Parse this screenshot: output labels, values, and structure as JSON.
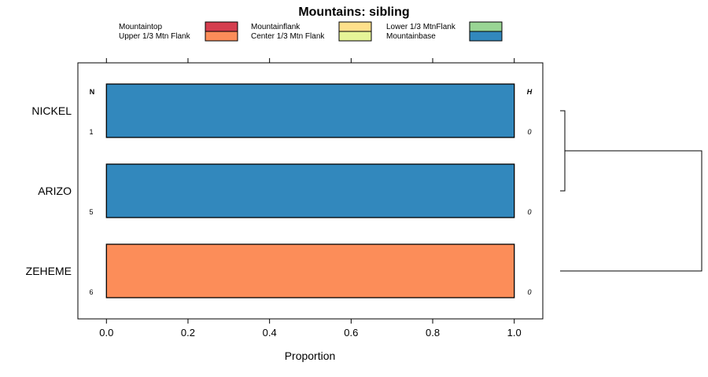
{
  "chart_data": {
    "type": "bar",
    "orientation": "horizontal",
    "stacked": true,
    "title": "Mountains: sibling",
    "xlabel": "Proportion",
    "xlim": [
      -0.07,
      1.07
    ],
    "x_ticks": [
      {
        "value": 0.0,
        "label": "0.0"
      },
      {
        "value": 0.2,
        "label": "0.2"
      },
      {
        "value": 0.4,
        "label": "0.4"
      },
      {
        "value": 0.6,
        "label": "0.6"
      },
      {
        "value": 0.8,
        "label": "0.8"
      },
      {
        "value": 1.0,
        "label": "1.0"
      }
    ],
    "n_header": "N",
    "h_header": "H",
    "legend": [
      {
        "name": "Mountaintop",
        "color": "#d53e4f"
      },
      {
        "name": "Upper 1/3 Mtn Flank",
        "color": "#fc8d59"
      },
      {
        "name": "Mountainflank",
        "color": "#fee08b"
      },
      {
        "name": "Center 1/3 Mtn Flank",
        "color": "#e6f598"
      },
      {
        "name": "Lower 1/3 MtnFlank",
        "color": "#99d594"
      },
      {
        "name": "Mountainbase",
        "color": "#3288bd"
      }
    ],
    "rows": [
      {
        "label": "NICKEL",
        "n": "1",
        "h": "0",
        "values": {
          "Mountaintop": 0,
          "Upper 1/3 Mtn Flank": 0,
          "Mountainflank": 0,
          "Center 1/3 Mtn Flank": 0,
          "Lower 1/3 MtnFlank": 0,
          "Mountainbase": 1.0
        }
      },
      {
        "label": "ARIZO",
        "n": "5",
        "h": "0",
        "values": {
          "Mountaintop": 0,
          "Upper 1/3 Mtn Flank": 0,
          "Mountainflank": 0,
          "Center 1/3 Mtn Flank": 0,
          "Lower 1/3 MtnFlank": 0,
          "Mountainbase": 1.0
        }
      },
      {
        "label": "ZEHEME",
        "n": "6",
        "h": "0",
        "values": {
          "Mountaintop": 0,
          "Upper 1/3 Mtn Flank": 1.0,
          "Mountainflank": 0,
          "Center 1/3 Mtn Flank": 0,
          "Lower 1/3 MtnFlank": 0,
          "Mountainbase": 0
        }
      }
    ],
    "dendrogram": {
      "merges": [
        {
          "a": "NICKEL",
          "b": "ARIZO",
          "height": 0.0
        },
        {
          "a": "NICKEL+ARIZO",
          "b": "ZEHEME",
          "height": 1.0
        }
      ]
    }
  }
}
